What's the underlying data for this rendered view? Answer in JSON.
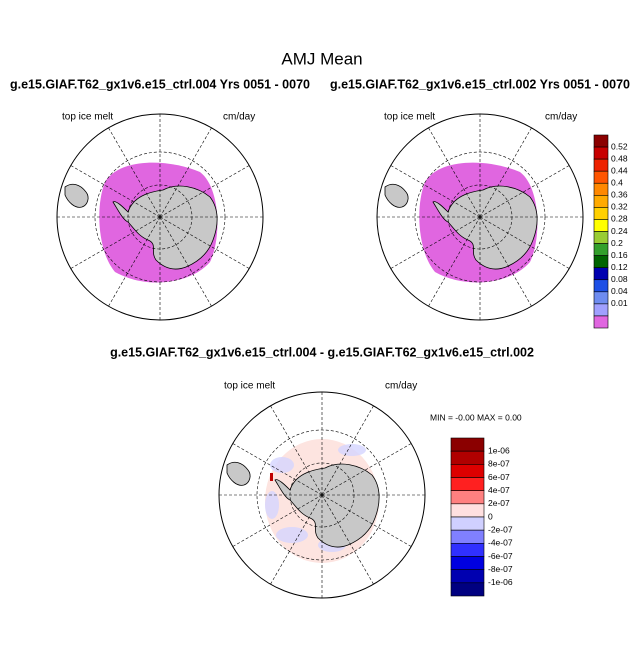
{
  "header": {
    "title": "AMJ Mean"
  },
  "panels": [
    {
      "title": "g.e15.GIAF.T62_gx1v6.e15_ctrl.004  Yrs 0051 - 0070",
      "left_label": "top ice melt",
      "right_label": "cm/day"
    },
    {
      "title": "g.e15.GIAF.T62_gx1v6.e15_ctrl.002  Yrs 0051 - 0070",
      "left_label": "top ice melt",
      "right_label": "cm/day"
    },
    {
      "title": "g.e15.GIAF.T62_gx1v6.e15_ctrl.004 - g.e15.GIAF.T62_gx1v6.e15_ctrl.002",
      "left_label": "top ice melt",
      "right_label": "cm/day",
      "stats": "MIN =  -0.00 MAX =   0.00"
    }
  ],
  "colorbars": [
    {
      "labels": [
        "0.52",
        "0.48",
        "0.44",
        "0.4",
        "0.36",
        "0.32",
        "0.28",
        "0.24",
        "0.2",
        "0.16",
        "0.12",
        "0.08",
        "0.04",
        "0.01"
      ],
      "colors": [
        "#8b0000",
        "#c80000",
        "#ee2200",
        "#ff5500",
        "#ff8800",
        "#ffaa00",
        "#ffd000",
        "#ffff00",
        "#99cc33",
        "#33a02c",
        "#006400",
        "#0000b0",
        "#1e50e6",
        "#6e8cf0",
        "#a0a0ff",
        "#e066e0"
      ]
    },
    {
      "labels": [
        "1e-06",
        "8e-07",
        "6e-07",
        "4e-07",
        "2e-07",
        "0",
        "-2e-07",
        "-4e-07",
        "-6e-07",
        "-8e-07",
        "-1e-06"
      ],
      "colors": [
        "#8b0000",
        "#b00000",
        "#dd0000",
        "#ff2020",
        "#ff8080",
        "#ffe0e0",
        "#d0d0ff",
        "#8080ff",
        "#3030ff",
        "#0000e0",
        "#0000b0",
        "#000080"
      ]
    }
  ]
}
